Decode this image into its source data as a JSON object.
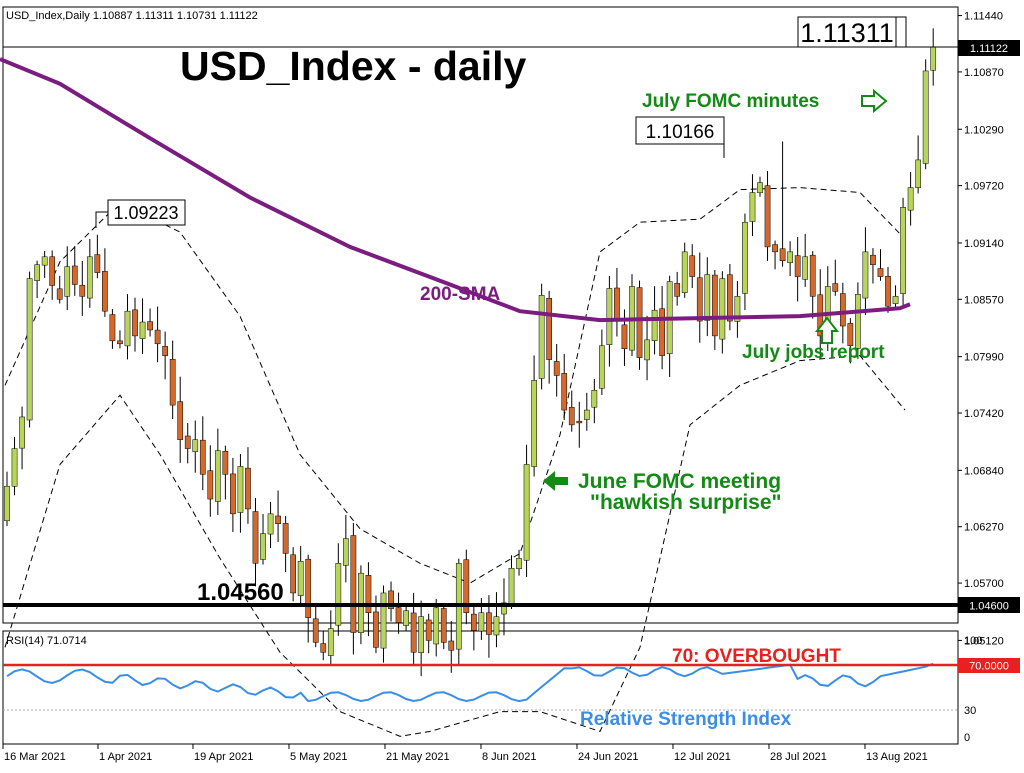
{
  "header": {
    "info": "USD_Index,Daily  1.10887 1.11311 1.10731 1.11122"
  },
  "chart_data": [
    {
      "type": "candlestick",
      "title": "USD_Index - daily",
      "ylim": [
        1.0445,
        1.117
      ],
      "yticks": [
        "1.11440",
        "1.10870",
        "1.10290",
        "1.09720",
        "1.09140",
        "1.08570",
        "1.07990",
        "1.07420",
        "1.06840",
        "1.06270",
        "1.05700",
        "1.05120"
      ],
      "xticks": [
        "16 Mar 2021",
        "1 Apr 2021",
        "19 Apr 2021",
        "5 May 2021",
        "21 May 2021",
        "8 Jun 2021",
        "24 Jun 2021",
        "12 Jul 2021",
        "28 Jul 2021",
        "13 Aug 2021"
      ],
      "closes": [
        1.0668,
        1.0706,
        1.0738,
        1.0878,
        1.0892,
        1.09,
        1.0871,
        1.0857,
        1.089,
        1.0872,
        1.086,
        1.09,
        1.0884,
        1.0845,
        1.0815,
        1.0812,
        1.0845,
        1.082,
        1.0834,
        1.0826,
        1.0812,
        1.08,
        1.075,
        1.0715,
        1.0706,
        1.0715,
        1.068,
        1.0655,
        1.0704,
        1.068,
        1.064,
        1.0688,
        1.0645,
        1.059,
        1.062,
        1.064,
        1.063,
        1.06,
        1.056,
        1.0592,
        1.0535,
        1.051,
        1.05,
        1.0524,
        1.059,
        1.0615,
        1.052,
        1.058,
        1.054,
        1.0505,
        1.056,
        1.0544,
        1.053,
        1.0542,
        1.05,
        1.0536,
        1.0512,
        1.0545,
        1.051,
        1.0502,
        1.059,
        1.054,
        1.0522,
        1.054,
        1.0518,
        1.0536,
        1.055,
        1.0585,
        1.0595,
        1.069,
        1.0775,
        1.0861,
        1.0796,
        1.078,
        1.0745,
        1.073,
        1.0732,
        1.0745,
        1.0765,
        1.081,
        1.0868,
        1.0835,
        1.0807,
        1.087,
        1.0798,
        1.0816,
        1.0846,
        1.08,
        1.0875,
        1.086,
        1.0905,
        1.088,
        1.0835,
        1.0882,
        1.082,
        1.0878,
        1.0835,
        1.086,
        1.0935,
        1.0965,
        1.0975,
        1.091,
        1.0905,
        1.0896,
        1.0905,
        1.088,
        1.09,
        1.086,
        1.082,
        1.087,
        1.0865,
        1.083,
        1.081,
        1.0862,
        1.0905,
        1.0892,
        1.088,
        1.085,
        1.086,
        1.095,
        1.097,
        1.0998,
        1.1088,
        1.1112
      ],
      "current_price": "1.11122",
      "support_level": "1.04600",
      "callouts": [
        {
          "price": 1.11311,
          "label": "1.11311"
        },
        {
          "price": 1.10166,
          "label": "1.10166"
        },
        {
          "price": 1.09223,
          "label": "1.09223"
        },
        {
          "price": 1.0456,
          "label": "1.04560"
        }
      ],
      "annotations": {
        "sma": "200-SMA",
        "fomc_minutes": "July FOMC minutes",
        "jobs": "July jobs report",
        "fomc_meeting_1": "June FOMC meeting",
        "fomc_meeting_2": "\"hawkish surprise\""
      },
      "colors": {
        "bull": "#b8d45a",
        "bear": "#d4692e",
        "sma": "#7b1c80",
        "rsi": "#3a8ee8",
        "overbought": "#e82020",
        "green": "#138a13"
      }
    },
    {
      "type": "line",
      "title": "RSI(14) 71.0714",
      "ylim": [
        0,
        100
      ],
      "yticks": [
        "100",
        "30",
        "0"
      ],
      "overbought_label": "70: OVERBOUGHT",
      "overbought_value": "70.0000",
      "series_label": "Relative Strength Index"
    }
  ]
}
